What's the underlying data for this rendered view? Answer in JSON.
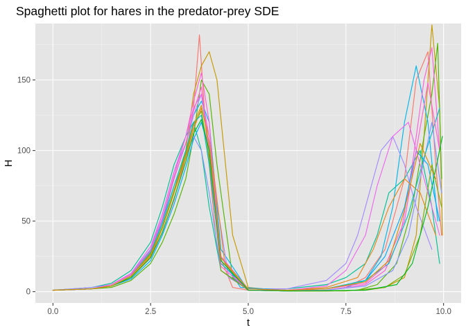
{
  "chart_data": {
    "type": "line",
    "title": "Spaghetti plot for hares in the predator-prey SDE",
    "xlabel": "t",
    "ylabel": "H",
    "xlim": [
      -0.45,
      10.45
    ],
    "ylim": [
      -8,
      190
    ],
    "xticks": [
      0,
      2.5,
      5,
      7.5,
      10
    ],
    "xtick_labels": [
      "0.0",
      "2.5",
      "5.0",
      "7.5",
      "10.0"
    ],
    "yticks": [
      0,
      50,
      100,
      150
    ],
    "ytick_labels": [
      "0",
      "50",
      "100",
      "150"
    ],
    "grid": true,
    "legend": "none",
    "background": "#e5e5e5",
    "palette": [
      "#f8766d",
      "#c49a00",
      "#53b400",
      "#00c094",
      "#00b6eb",
      "#a58aff",
      "#fb61d7",
      "#00a9ff",
      "#8494ff",
      "#e7861b",
      "#7cae00",
      "#00bfc4",
      "#ed68ed",
      "#ff61cc",
      "#00b81f",
      "#d89000"
    ],
    "series": [
      {
        "x": [
          0,
          1,
          1.5,
          2,
          2.5,
          2.8,
          3.1,
          3.4,
          3.6,
          3.75,
          3.9,
          4.2,
          4.6,
          5,
          6,
          7,
          7.5,
          8,
          8.5,
          9,
          9.3,
          9.6,
          9.8,
          9.95
        ],
        "values": [
          1,
          2,
          4,
          10,
          25,
          42,
          65,
          95,
          130,
          182,
          120,
          30,
          3,
          1,
          1,
          1,
          3,
          10,
          30,
          80,
          150,
          170,
          90,
          40
        ]
      },
      {
        "x": [
          0,
          1,
          1.5,
          2,
          2.5,
          2.8,
          3.1,
          3.4,
          3.6,
          3.8,
          4,
          4.2,
          4.6,
          5,
          6,
          7,
          8,
          8.5,
          9,
          9.3,
          9.5,
          9.7,
          9.9,
          9.97
        ],
        "values": [
          1,
          2,
          5,
          12,
          28,
          45,
          70,
          100,
          140,
          160,
          170,
          150,
          40,
          3,
          0.5,
          0.5,
          1,
          3,
          10,
          40,
          110,
          189,
          130,
          40
        ]
      },
      {
        "x": [
          0,
          1,
          1.5,
          2,
          2.5,
          2.8,
          3.1,
          3.4,
          3.6,
          3.8,
          4,
          4.2,
          4.6,
          5,
          6,
          7,
          7.8,
          8.3,
          8.8,
          9.2,
          9.5,
          9.7,
          9.85,
          9.95
        ],
        "values": [
          1,
          2,
          3,
          8,
          20,
          35,
          55,
          80,
          110,
          150,
          140,
          90,
          10,
          1,
          0.5,
          0.5,
          1,
          5,
          20,
          60,
          110,
          140,
          176,
          80
        ]
      },
      {
        "x": [
          0,
          1,
          1.5,
          2,
          2.5,
          2.8,
          3.1,
          3.4,
          3.6,
          3.8,
          4,
          4.3,
          5,
          6,
          7,
          7.5,
          8,
          8.3,
          8.6,
          9,
          9.4,
          9.7,
          9.9
        ],
        "values": [
          1,
          3,
          6,
          15,
          35,
          60,
          90,
          110,
          120,
          100,
          60,
          15,
          2,
          2,
          5,
          10,
          20,
          40,
          70,
          80,
          100,
          60,
          20
        ]
      },
      {
        "x": [
          0,
          1,
          1.5,
          2,
          2.5,
          2.8,
          3.1,
          3.4,
          3.6,
          3.8,
          4,
          4.3,
          5,
          6,
          7,
          7.5,
          8,
          8.4,
          8.7,
          9,
          9.3,
          9.6,
          9.85
        ],
        "values": [
          1,
          2,
          4,
          11,
          27,
          50,
          80,
          105,
          125,
          135,
          120,
          30,
          1,
          0.5,
          1,
          3,
          8,
          25,
          60,
          120,
          160,
          120,
          50
        ]
      },
      {
        "x": [
          0,
          1,
          1.5,
          2,
          2.5,
          2.8,
          3.1,
          3.4,
          3.6,
          3.8,
          4.1,
          4.5,
          5,
          6,
          7,
          7.5,
          7.8,
          8.1,
          8.4,
          8.7,
          9,
          9.3,
          9.7
        ],
        "values": [
          1,
          3,
          5,
          13,
          30,
          55,
          85,
          105,
          125,
          140,
          80,
          10,
          2,
          2,
          8,
          20,
          40,
          70,
          100,
          110,
          90,
          60,
          30
        ]
      },
      {
        "x": [
          0,
          1,
          1.5,
          2,
          2.5,
          2.8,
          3.1,
          3.4,
          3.6,
          3.8,
          4,
          4.3,
          5,
          6,
          7,
          8,
          8.5,
          8.9,
          9.2,
          9.5,
          9.7,
          9.9
        ],
        "values": [
          1,
          2,
          5,
          12,
          30,
          52,
          82,
          110,
          135,
          155,
          120,
          20,
          1,
          0.5,
          1,
          5,
          15,
          40,
          90,
          150,
          173,
          100
        ]
      },
      {
        "x": [
          0,
          1,
          1.5,
          2,
          2.5,
          2.8,
          3.1,
          3.4,
          3.6,
          3.8,
          4,
          4.3,
          4.8,
          6,
          7,
          8,
          8.5,
          9,
          9.3,
          9.6,
          9.9
        ],
        "values": [
          1,
          2,
          4,
          9,
          22,
          40,
          62,
          88,
          108,
          120,
          100,
          25,
          3,
          1,
          2,
          8,
          25,
          60,
          100,
          90,
          50
        ]
      },
      {
        "x": [
          0,
          1,
          1.5,
          2,
          2.5,
          2.8,
          3.1,
          3.4,
          3.6,
          3.8,
          4,
          4.3,
          5,
          6,
          7,
          8,
          8.7,
          9.1,
          9.4,
          9.7,
          9.95
        ],
        "values": [
          1,
          2,
          5,
          12,
          30,
          50,
          75,
          95,
          110,
          100,
          70,
          15,
          1,
          0.5,
          1,
          4,
          15,
          40,
          80,
          120,
          70
        ]
      },
      {
        "x": [
          0,
          1,
          1.5,
          2,
          2.5,
          2.8,
          3.1,
          3.4,
          3.6,
          3.8,
          4,
          4.4,
          5,
          6,
          7,
          7.8,
          8.2,
          8.6,
          9,
          9.4,
          9.8
        ],
        "values": [
          1,
          2,
          4,
          10,
          25,
          45,
          70,
          95,
          115,
          130,
          110,
          20,
          1,
          1,
          3,
          10,
          30,
          60,
          80,
          70,
          40
        ]
      },
      {
        "x": [
          0,
          1,
          1.5,
          2,
          2.5,
          2.8,
          3.1,
          3.4,
          3.6,
          3.8,
          4,
          4.3,
          5,
          6,
          7.5,
          8.5,
          9,
          9.4,
          9.7,
          9.95
        ],
        "values": [
          1,
          2,
          4,
          11,
          27,
          46,
          72,
          98,
          118,
          128,
          95,
          15,
          1,
          0.5,
          0.5,
          3,
          12,
          40,
          90,
          60
        ]
      },
      {
        "x": [
          0,
          1,
          1.5,
          2,
          2.5,
          2.8,
          3.1,
          3.4,
          3.6,
          3.8,
          4,
          4.3,
          5,
          6,
          7,
          8,
          8.6,
          9.1,
          9.5,
          9.9
        ],
        "values": [
          1,
          2,
          5,
          12,
          28,
          48,
          75,
          100,
          120,
          125,
          90,
          20,
          2,
          1,
          2,
          8,
          20,
          55,
          95,
          130
        ]
      },
      {
        "x": [
          0,
          1,
          1.5,
          2,
          2.5,
          2.8,
          3.1,
          3.4,
          3.6,
          3.8,
          4,
          4.3,
          5,
          6,
          7,
          7.5,
          8,
          8.3,
          8.7,
          9.1,
          9.5,
          9.9
        ],
        "values": [
          1,
          2,
          5,
          13,
          32,
          55,
          85,
          110,
          130,
          140,
          110,
          25,
          2,
          1,
          4,
          15,
          40,
          75,
          110,
          120,
          80,
          40
        ]
      },
      {
        "x": [
          0,
          1,
          1.5,
          2,
          2.5,
          2.8,
          3.1,
          3.4,
          3.6,
          3.8,
          4,
          4.3,
          5,
          6,
          7,
          8,
          8.5,
          9,
          9.3,
          9.6,
          9.9
        ],
        "values": [
          1,
          2,
          5,
          12,
          29,
          52,
          80,
          105,
          128,
          145,
          100,
          18,
          1,
          1,
          2,
          6,
          18,
          50,
          100,
          148,
          100
        ]
      },
      {
        "x": [
          0,
          1,
          1.5,
          2,
          2.5,
          2.8,
          3.1,
          3.4,
          3.6,
          3.8,
          4,
          4.3,
          5,
          6,
          8,
          8.8,
          9.2,
          9.6,
          9.97
        ],
        "values": [
          1,
          2,
          4,
          10,
          24,
          42,
          66,
          92,
          112,
          122,
          100,
          22,
          1,
          0.5,
          1,
          5,
          20,
          60,
          110
        ]
      },
      {
        "x": [
          0,
          1,
          1.5,
          2,
          2.5,
          2.8,
          3.1,
          3.4,
          3.6,
          3.8,
          4,
          4.3,
          5,
          6,
          7,
          8,
          8.6,
          9,
          9.4,
          9.8
        ],
        "values": [
          1,
          2,
          4,
          11,
          26,
          45,
          70,
          96,
          118,
          132,
          105,
          24,
          2,
          1,
          2,
          7,
          22,
          58,
          105,
          80
        ]
      }
    ]
  }
}
